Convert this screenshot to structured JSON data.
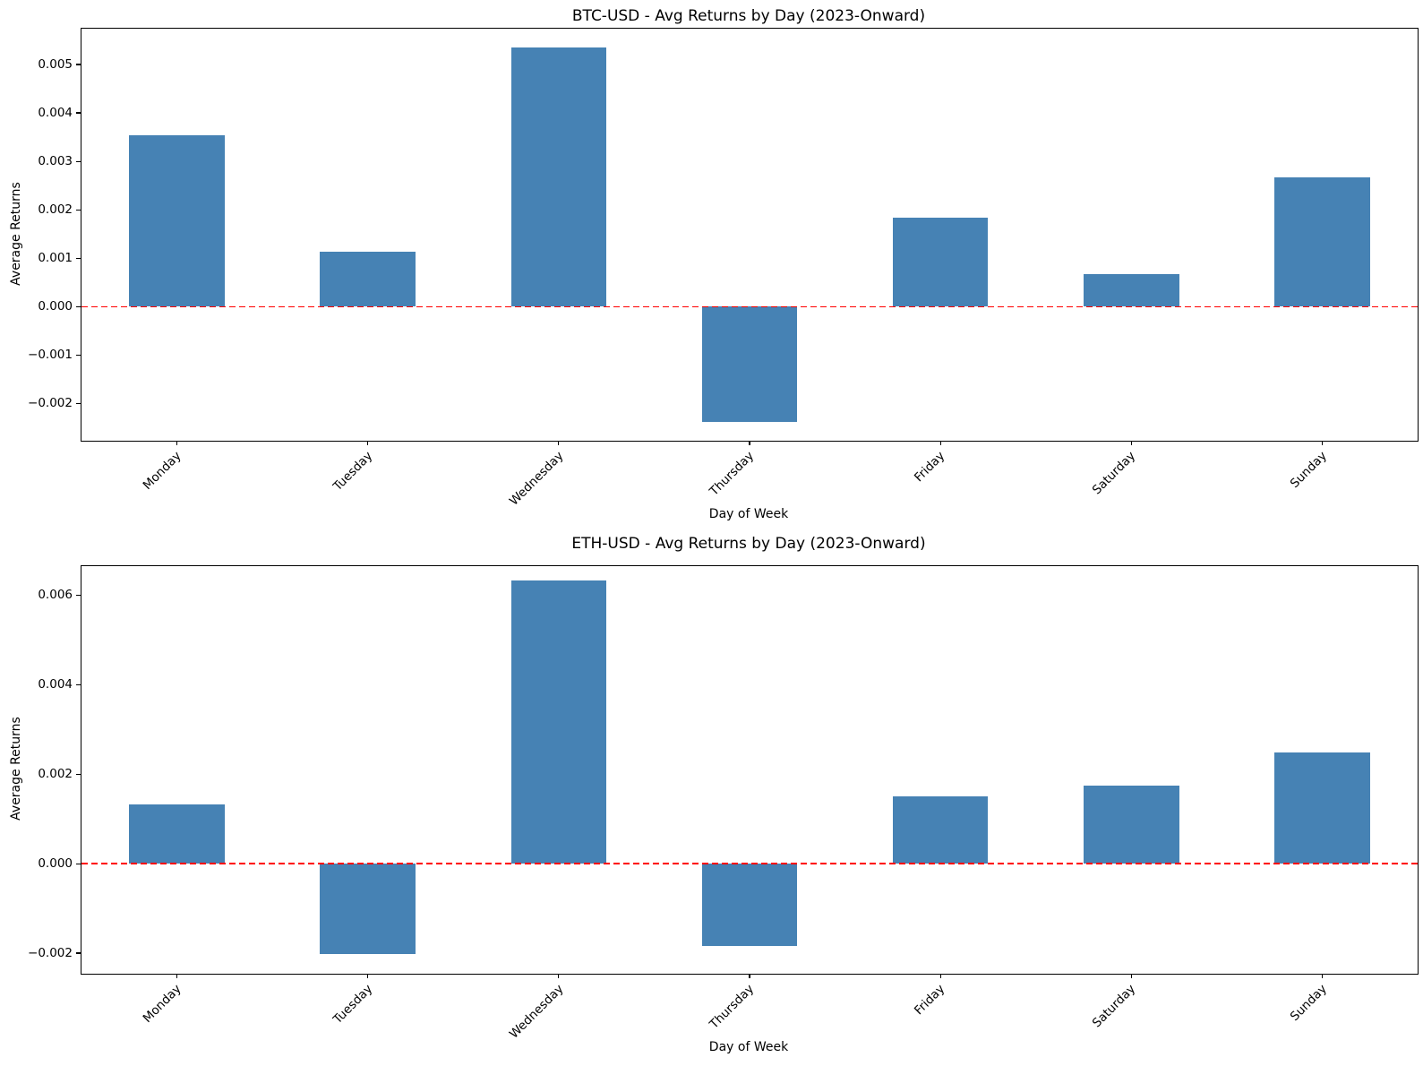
{
  "figure": {
    "bar_color": "#4682B4",
    "zero_line_color": "#ff0000",
    "axis_color": "#000000",
    "background_color": "#ffffff",
    "text_color": "#000000"
  },
  "chart_data": [
    {
      "type": "bar",
      "title": "BTC-USD - Avg Returns by Day (2023-Onward)",
      "xlabel": "Day of Week",
      "ylabel": "Average Returns",
      "categories": [
        "Monday",
        "Tuesday",
        "Wednesday",
        "Thursday",
        "Friday",
        "Saturday",
        "Sunday"
      ],
      "values": [
        0.00354,
        0.00114,
        0.00535,
        -0.00239,
        0.00184,
        0.00067,
        0.00266
      ],
      "ylim": [
        -0.00277,
        0.00574
      ],
      "yticks": [
        0.005,
        0.004,
        0.003,
        0.002,
        0.001,
        0.0,
        -0.001,
        -0.002
      ],
      "ytick_labels": [
        "0.005",
        "0.004",
        "0.003",
        "0.002",
        "0.001",
        "0.000",
        "−0.001",
        "−0.002"
      ],
      "zero_line_y": 0.0,
      "bar_width_fraction": 0.5,
      "x_tick_rotation_deg": 45,
      "grid": false,
      "legend": false
    },
    {
      "type": "bar",
      "title": "ETH-USD - Avg Returns by Day (2023-Onward)",
      "xlabel": "Day of Week",
      "ylabel": "Average Returns",
      "categories": [
        "Monday",
        "Tuesday",
        "Wednesday",
        "Thursday",
        "Friday",
        "Saturday",
        "Sunday"
      ],
      "values": [
        0.00133,
        -0.00201,
        0.00632,
        -0.00183,
        0.00151,
        0.00174,
        0.00248
      ],
      "ylim": [
        -0.00246,
        0.00665
      ],
      "yticks": [
        0.006,
        0.004,
        0.002,
        0.0,
        -0.002
      ],
      "ytick_labels": [
        "0.006",
        "0.004",
        "0.002",
        "0.000",
        "−0.002"
      ],
      "zero_line_y": 0.0,
      "bar_width_fraction": 0.5,
      "x_tick_rotation_deg": 45,
      "grid": false,
      "legend": false
    }
  ]
}
